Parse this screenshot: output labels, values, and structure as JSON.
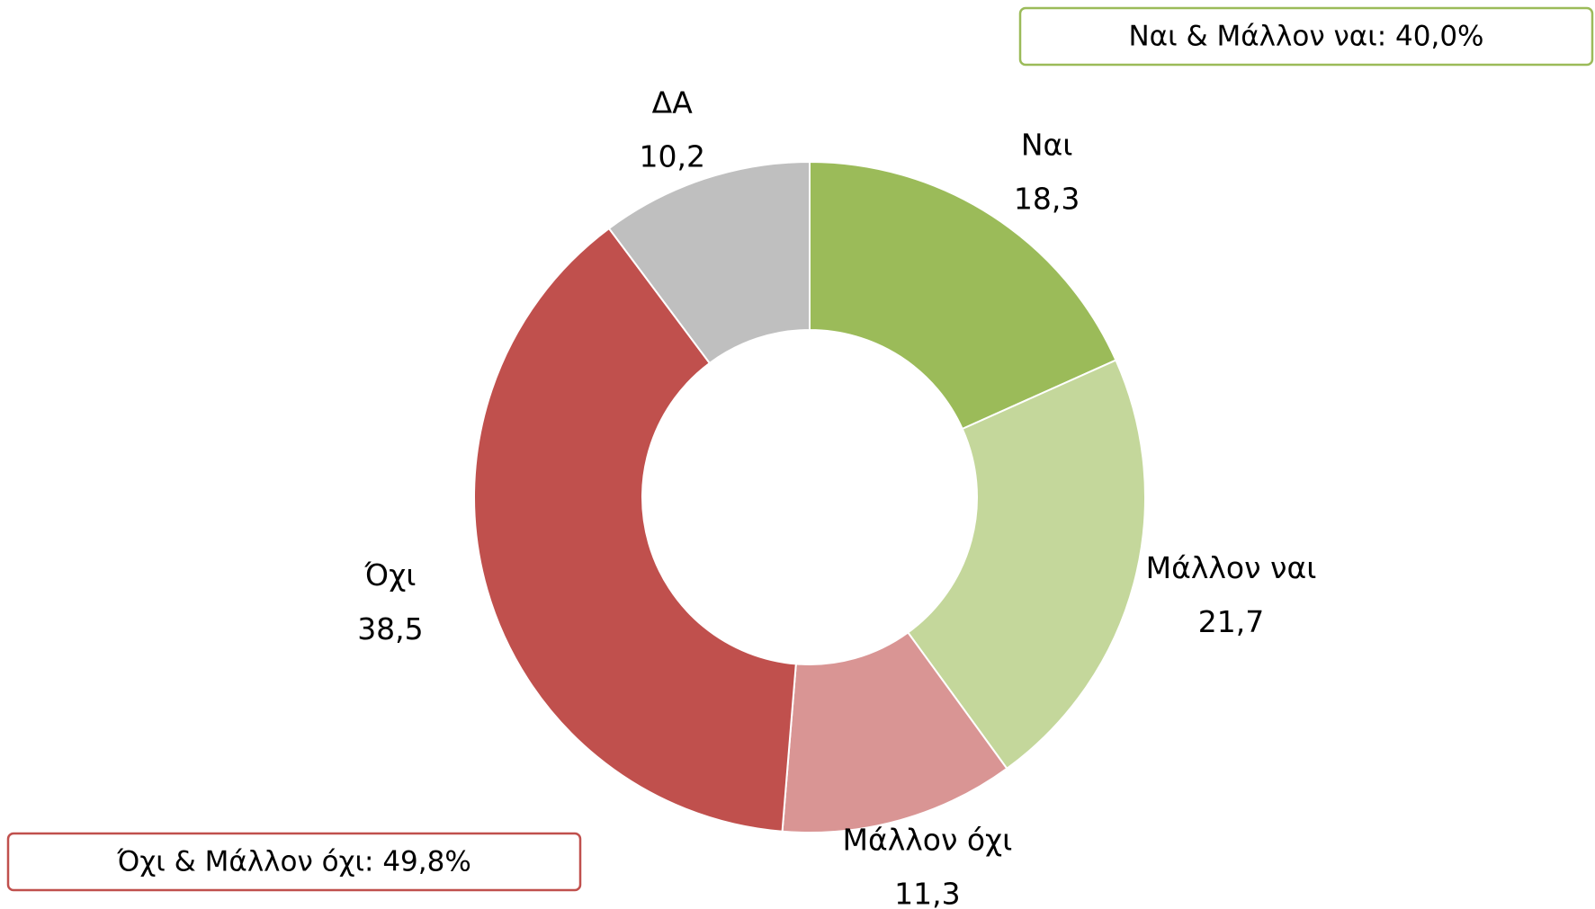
{
  "chart_data": {
    "type": "donut",
    "categories": [
      "Ναι",
      "Μάλλον ναι",
      "Μάλλον όχι",
      "Όχι",
      "ΔΑ"
    ],
    "values": [
      18.3,
      21.7,
      11.3,
      38.5,
      10.2
    ],
    "value_labels": [
      "18,3",
      "21,7",
      "11,3",
      "38,5",
      "10,2"
    ],
    "colors": [
      "#9bbb59",
      "#c4d79b",
      "#d99594",
      "#c0504d",
      "#bfbfbf"
    ],
    "annotations": [
      {
        "text": "Ναι & Μάλλον ναι: 40,0%",
        "color": "#9bbb59"
      },
      {
        "text": "Όχι & Μάλλον όχι: 49,8%",
        "color": "#c0504d"
      }
    ]
  }
}
